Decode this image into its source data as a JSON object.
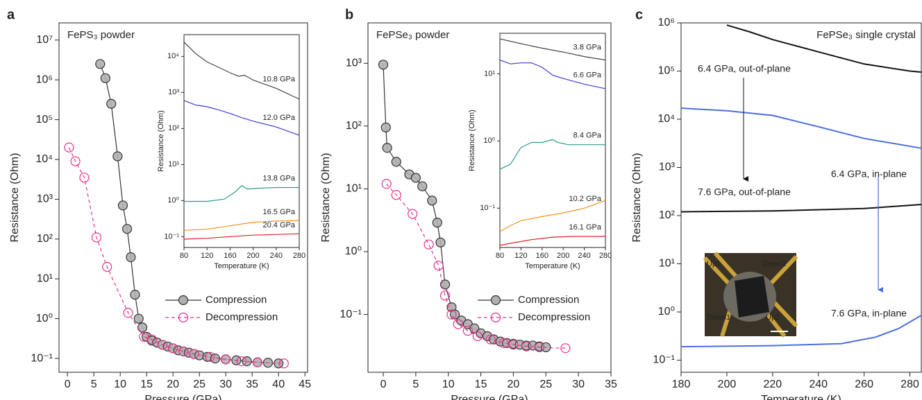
{
  "chart_data": [
    {
      "type": "line",
      "panel_label": "a",
      "title": "FePS₃ powder",
      "x_label": "Pressure (GPa)",
      "y_label": "Resistance (Ohm)",
      "log_y": true,
      "xlim": [
        -1.6,
        45.5
      ],
      "ylim": [
        0.045,
        27000000
      ],
      "xticks": [
        0,
        5,
        10,
        15,
        20,
        25,
        30,
        35,
        40,
        45
      ],
      "yticks": [
        {
          "value": 0.1,
          "label": "10⁻¹"
        },
        {
          "value": 1,
          "label": "10⁰"
        },
        {
          "value": 10,
          "label": "10¹"
        },
        {
          "value": 100,
          "label": "10²"
        },
        {
          "value": 1000,
          "label": "10³"
        },
        {
          "value": 10000,
          "label": "10⁴"
        },
        {
          "value": 100000,
          "label": "10⁵"
        },
        {
          "value": 1000000,
          "label": "10⁶"
        },
        {
          "value": 10000000,
          "label": "10⁷"
        }
      ],
      "legend": "center right",
      "series": [
        {
          "name": "Compression",
          "color": "#333333",
          "marker_fill": "#b0b0b0",
          "dashed": false,
          "x": [
            6.2,
            7.2,
            8.3,
            9.5,
            10.5,
            11.3,
            12,
            12.8,
            13.5,
            14.2,
            15,
            16,
            17,
            18,
            19,
            20,
            21,
            22,
            23,
            24,
            25,
            26.5,
            28,
            30,
            32,
            34,
            36,
            38,
            40
          ],
          "values": [
            2500000,
            1100000,
            250000,
            12000,
            700,
            180,
            35,
            4,
            1,
            0.6,
            0.35,
            0.28,
            0.25,
            0.22,
            0.2,
            0.18,
            0.16,
            0.15,
            0.14,
            0.13,
            0.12,
            0.11,
            0.1,
            0.095,
            0.09,
            0.085,
            0.08,
            0.078,
            0.075
          ]
        },
        {
          "name": "Decompression",
          "color": "#e8308a",
          "marker_fill": "none",
          "dashed": true,
          "x": [
            0.3,
            1.5,
            3.2,
            5.5,
            7.5,
            11.5,
            14.5,
            16,
            18,
            20,
            22,
            24,
            27,
            30,
            33,
            36,
            41
          ],
          "values": [
            20000,
            9000,
            3500,
            110,
            20,
            1.4,
            0.35,
            0.3,
            0.22,
            0.18,
            0.15,
            0.13,
            0.11,
            0.095,
            0.085,
            0.08,
            0.075
          ]
        }
      ]
    },
    {
      "type": "line",
      "inset": true,
      "x_label": "Temperature (K)",
      "y_label": "Resistance (Ohm)",
      "log_y": true,
      "xlim": [
        80,
        280
      ],
      "ylim": [
        0.05,
        40000
      ],
      "xticks": [
        80,
        120,
        160,
        200,
        240,
        280
      ],
      "yticks": [
        {
          "value": 0.1,
          "label": "10⁻¹"
        },
        {
          "value": 1,
          "label": "10⁰"
        },
        {
          "value": 10,
          "label": "10¹"
        },
        {
          "value": 100,
          "label": "10²"
        },
        {
          "value": 1000,
          "label": "10³"
        },
        {
          "value": 10000,
          "label": "10⁴"
        }
      ],
      "series": [
        {
          "name": "10.8 GPa",
          "color": "#444444",
          "x": [
            80,
            100,
            120,
            140,
            160,
            175,
            185,
            200,
            240,
            280
          ],
          "values": [
            25000,
            12000,
            7000,
            5000,
            3500,
            2800,
            3000,
            2200,
            1300,
            650
          ]
        },
        {
          "name": "12.0 GPa",
          "color": "#3b3bd6",
          "x": [
            80,
            100,
            120,
            140,
            160,
            180,
            200,
            240,
            280
          ],
          "values": [
            600,
            450,
            400,
            330,
            260,
            200,
            160,
            110,
            65
          ]
        },
        {
          "name": "13.8 GPa",
          "color": "#2a9a8e",
          "x": [
            80,
            120,
            150,
            170,
            180,
            190,
            210,
            240,
            280
          ],
          "values": [
            0.95,
            0.95,
            1.1,
            1.8,
            2.6,
            2.1,
            2.2,
            2.3,
            2.3
          ]
        },
        {
          "name": "16.5 GPa",
          "color": "#f0921e",
          "x": [
            80,
            120,
            160,
            200,
            240,
            280
          ],
          "values": [
            0.15,
            0.16,
            0.2,
            0.25,
            0.27,
            0.28
          ]
        },
        {
          "name": "20.4 GPa",
          "color": "#e02020",
          "x": [
            80,
            120,
            160,
            200,
            240,
            280
          ],
          "values": [
            0.085,
            0.09,
            0.1,
            0.11,
            0.115,
            0.12
          ]
        }
      ]
    },
    {
      "type": "line",
      "panel_label": "b",
      "title": "FePSe₃ powder",
      "x_label": "Pressure (GPa)",
      "y_label": "Resistance (Ohm)",
      "log_y": true,
      "xlim": [
        -2.35,
        35
      ],
      "ylim": [
        0.012,
        4400
      ],
      "xticks": [
        0,
        5,
        10,
        15,
        20,
        25,
        30,
        35
      ],
      "yticks": [
        {
          "value": 0.1,
          "label": "10⁻¹"
        },
        {
          "value": 1,
          "label": "10⁰"
        },
        {
          "value": 10,
          "label": "10¹"
        },
        {
          "value": 100,
          "label": "10²"
        },
        {
          "value": 1000,
          "label": "10³"
        }
      ],
      "legend": "center right",
      "series": [
        {
          "name": "Compression",
          "color": "#333333",
          "marker_fill": "#b0b0b0",
          "dashed": false,
          "x": [
            0,
            0.4,
            0.6,
            2,
            4,
            5,
            6,
            7.5,
            8.3,
            8.8,
            9.5,
            10.5,
            11,
            12,
            13,
            14,
            15,
            16,
            17,
            18,
            19,
            20,
            21,
            22,
            23,
            24,
            25
          ],
          "values": [
            950,
            95,
            45,
            27,
            17,
            15,
            11,
            6.5,
            2.9,
            1.4,
            0.3,
            0.13,
            0.1,
            0.08,
            0.07,
            0.06,
            0.05,
            0.045,
            0.04,
            0.037,
            0.035,
            0.034,
            0.033,
            0.032,
            0.032,
            0.031,
            0.03
          ]
        },
        {
          "name": "Decompression",
          "color": "#e8308a",
          "marker_fill": "none",
          "dashed": true,
          "x": [
            0.5,
            2,
            4.5,
            7,
            8.5,
            9.5,
            10.5,
            11.5,
            13,
            14.5,
            16.5,
            18.5,
            20,
            22,
            24,
            28
          ],
          "values": [
            12,
            8,
            4,
            1.3,
            0.6,
            0.2,
            0.1,
            0.07,
            0.055,
            0.045,
            0.04,
            0.035,
            0.033,
            0.031,
            0.03,
            0.029
          ]
        }
      ]
    },
    {
      "type": "line",
      "inset": true,
      "x_label": "Temperature (K)",
      "y_label": "Resistance (Ohm)",
      "log_y": true,
      "xlim": [
        80,
        280
      ],
      "ylim": [
        0.026,
        40
      ],
      "xticks": [
        80,
        120,
        160,
        200,
        240,
        280
      ],
      "yticks": [
        {
          "value": 0.1,
          "label": "10⁻¹"
        },
        {
          "value": 1,
          "label": "10⁰"
        },
        {
          "value": 10,
          "label": "10¹"
        }
      ],
      "series": [
        {
          "name": "3.8 GPa",
          "color": "#444444",
          "x": [
            80,
            120,
            160,
            200,
            240,
            280
          ],
          "values": [
            33,
            28,
            24,
            21,
            18,
            16
          ]
        },
        {
          "name": "6.6 GPa",
          "color": "#3b3bd6",
          "x": [
            80,
            100,
            120,
            140,
            160,
            180,
            200,
            240,
            280
          ],
          "values": [
            16,
            14,
            14.5,
            14.5,
            12.5,
            9.5,
            8.5,
            7,
            6
          ]
        },
        {
          "name": "8.4 GPa",
          "color": "#2a9a8e",
          "x": [
            80,
            100,
            120,
            140,
            160,
            180,
            190,
            210,
            240,
            280
          ],
          "values": [
            0.38,
            0.45,
            0.8,
            0.95,
            0.95,
            1.05,
            0.95,
            0.88,
            0.88,
            0.88
          ]
        },
        {
          "name": "10.2 GPa",
          "color": "#f0921e",
          "x": [
            80,
            100,
            120,
            160,
            200,
            240,
            280
          ],
          "values": [
            0.045,
            0.055,
            0.065,
            0.075,
            0.085,
            0.1,
            0.13
          ]
        },
        {
          "name": "16.1 GPa",
          "color": "#e02020",
          "x": [
            80,
            100,
            140,
            180,
            220,
            280
          ],
          "values": [
            0.028,
            0.03,
            0.034,
            0.037,
            0.038,
            0.038
          ]
        }
      ]
    },
    {
      "type": "line",
      "panel_label": "c",
      "title": "FePSe₃ single crystal",
      "x_label": "Temperature (K)",
      "y_label": "Resistance (Ohm)",
      "log_y": true,
      "xlim": [
        180,
        285
      ],
      "ylim": [
        0.056,
        1000000
      ],
      "xticks": [
        180,
        200,
        220,
        240,
        260,
        280
      ],
      "yticks": [
        {
          "value": 0.1,
          "label": "10⁻¹"
        },
        {
          "value": 1,
          "label": "10⁰"
        },
        {
          "value": 10,
          "label": "10¹"
        },
        {
          "value": 100,
          "label": "10²"
        },
        {
          "value": 1000,
          "label": "10³"
        },
        {
          "value": 10000,
          "label": "10⁴"
        },
        {
          "value": 100000,
          "label": "10⁵"
        },
        {
          "value": 1000000,
          "label": "10⁶"
        }
      ],
      "photo_labels": [
        "Up1",
        "Down2",
        "Down1",
        "Up2"
      ],
      "series": [
        {
          "name": "6.4 GPa, out-of-plane",
          "color": "#111111",
          "x": [
            200,
            210,
            220,
            240,
            260,
            280,
            285
          ],
          "values": [
            900000,
            650000,
            450000,
            250000,
            140000,
            100000,
            95000
          ]
        },
        {
          "name": "7.6 GPa, out-of-plane",
          "color": "#111111",
          "x": [
            180,
            220,
            260,
            285
          ],
          "values": [
            120,
            125,
            140,
            170
          ]
        },
        {
          "name": "6.4 GPa, in-plane",
          "color": "#4a6ee0",
          "x": [
            180,
            200,
            220,
            240,
            260,
            285
          ],
          "values": [
            17000,
            15000,
            12000,
            7000,
            4000,
            2500
          ]
        },
        {
          "name": "7.6 GPa, in-plane",
          "color": "#4a6ee0",
          "x": [
            180,
            220,
            250,
            265,
            275,
            285
          ],
          "values": [
            0.19,
            0.2,
            0.22,
            0.3,
            0.45,
            0.85
          ]
        }
      ]
    }
  ]
}
